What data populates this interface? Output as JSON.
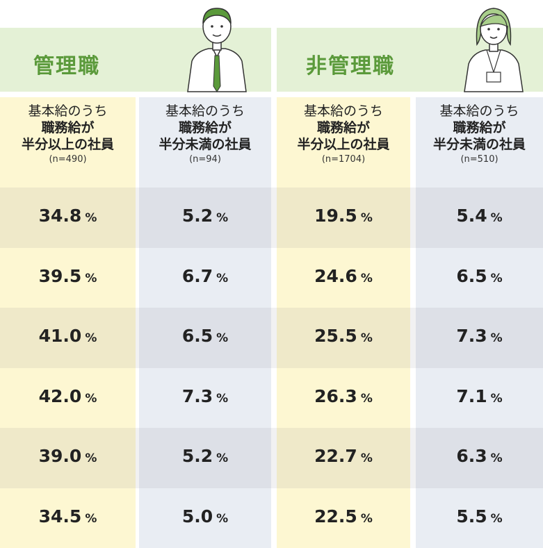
{
  "groups": [
    {
      "title": "管理職"
    },
    {
      "title": "非管理職"
    }
  ],
  "table": {
    "columns": [
      {
        "lines": [
          "基本給のうち",
          "職務給が",
          "半分以上の社員",
          "(n=490)"
        ]
      },
      {
        "lines": [
          "基本給のうち",
          "職務給が",
          "半分未満の社員",
          "(n=94)"
        ]
      },
      {
        "lines": [
          "基本給のうち",
          "職務給が",
          "半分以上の社員",
          "(n=1704)"
        ]
      },
      {
        "lines": [
          "基本給のうち",
          "職務給が",
          "半分未満の社員",
          "(n=510)"
        ]
      }
    ],
    "rows": [
      [
        {
          "value": "34.8",
          "unit": "%"
        },
        {
          "value": "5.2",
          "unit": "%"
        },
        {
          "value": "19.5",
          "unit": "%"
        },
        {
          "value": "5.4",
          "unit": "%"
        }
      ],
      [
        {
          "value": "39.5",
          "unit": "%"
        },
        {
          "value": "6.7",
          "unit": "%"
        },
        {
          "value": "24.6",
          "unit": "%"
        },
        {
          "value": "6.5",
          "unit": "%"
        }
      ],
      [
        {
          "value": "41.0",
          "unit": "%"
        },
        {
          "value": "6.5",
          "unit": "%"
        },
        {
          "value": "25.5",
          "unit": "%"
        },
        {
          "value": "7.3",
          "unit": "%"
        }
      ],
      [
        {
          "value": "42.0",
          "unit": "%"
        },
        {
          "value": "7.3",
          "unit": "%"
        },
        {
          "value": "26.3",
          "unit": "%"
        },
        {
          "value": "7.1",
          "unit": "%"
        }
      ],
      [
        {
          "value": "39.0",
          "unit": "%"
        },
        {
          "value": "5.2",
          "unit": "%"
        },
        {
          "value": "22.7",
          "unit": "%"
        },
        {
          "value": "6.3",
          "unit": "%"
        }
      ],
      [
        {
          "value": "34.5",
          "unit": "%"
        },
        {
          "value": "5.0",
          "unit": "%"
        },
        {
          "value": "22.5",
          "unit": "%"
        },
        {
          "value": "5.5",
          "unit": "%"
        }
      ]
    ]
  }
}
